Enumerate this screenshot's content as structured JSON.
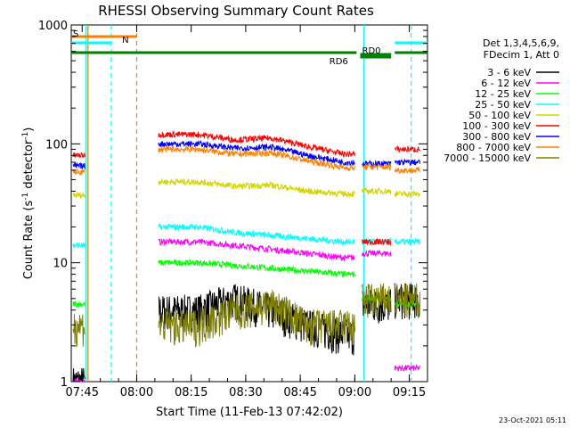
{
  "chart_data": {
    "type": "line",
    "title": "RHESSI Observing Summary Count Rates",
    "xlabel": "Start Time (11-Feb-13 07:42:02)",
    "ylabel_main": "Count Rate (s",
    "ylabel_sup1": "-1",
    "ylabel_mid": " detector",
    "ylabel_sup2": "-1",
    "ylabel_end": ")",
    "y_scale": "log",
    "ylim": [
      1,
      1000
    ],
    "xlim_minutes": [
      0,
      98
    ],
    "x_ticks": [
      {
        "t": 3,
        "label": "07:45"
      },
      {
        "t": 18,
        "label": "08:00"
      },
      {
        "t": 33,
        "label": "08:15"
      },
      {
        "t": 48,
        "label": "08:30"
      },
      {
        "t": 63,
        "label": "08:45"
      },
      {
        "t": 78,
        "label": "09:00"
      },
      {
        "t": 93,
        "label": "09:15"
      }
    ],
    "y_ticks": [
      {
        "v": 1,
        "label": "1"
      },
      {
        "v": 10,
        "label": "10"
      },
      {
        "v": 100,
        "label": "100"
      },
      {
        "v": 1000,
        "label": "1000"
      }
    ],
    "legend_header": [
      "Det 1,3,4,5,6,9,",
      "FDecim 1, Att 0"
    ],
    "series": [
      {
        "name": "3 - 6 keV",
        "color": "#000000",
        "before": 1.0,
        "seg": [
          [
            35,
            4
          ],
          [
            45,
            5
          ],
          [
            55,
            4
          ],
          [
            65,
            3
          ],
          [
            75,
            2.5
          ]
        ],
        "after": 4.5,
        "late": 5
      },
      {
        "name": "6 - 12 keV",
        "color": "#ff00ff",
        "before": 1.0,
        "seg": [
          [
            35,
            15
          ],
          [
            45,
            14
          ],
          [
            55,
            13
          ],
          [
            65,
            12
          ],
          [
            75,
            11
          ]
        ],
        "after": 12,
        "late": 1.3
      },
      {
        "name": "12 - 25 keV",
        "color": "#00ff00",
        "before": 4.5,
        "seg": [
          [
            35,
            10
          ],
          [
            45,
            9.5
          ],
          [
            55,
            9
          ],
          [
            65,
            8.5
          ],
          [
            75,
            8
          ]
        ],
        "after": 5,
        "late": 4.5
      },
      {
        "name": "25 - 50 keV",
        "color": "#00ffff",
        "before": 14,
        "seg": [
          [
            35,
            20
          ],
          [
            45,
            18
          ],
          [
            55,
            17
          ],
          [
            65,
            16
          ],
          [
            75,
            15
          ]
        ],
        "after": 15,
        "late": 15
      },
      {
        "name": "50 - 100 keV",
        "color": "#d4d400",
        "before": 37,
        "seg": [
          [
            35,
            48
          ],
          [
            45,
            44
          ],
          [
            55,
            45
          ],
          [
            65,
            40
          ],
          [
            75,
            38
          ]
        ],
        "after": 40,
        "late": 38
      },
      {
        "name": "100 - 300 keV",
        "color": "#ff0000",
        "before": 80,
        "seg": [
          [
            35,
            120
          ],
          [
            45,
            108
          ],
          [
            55,
            112
          ],
          [
            65,
            95
          ],
          [
            75,
            82
          ]
        ],
        "after": 15,
        "late": 90
      },
      {
        "name": "300 - 800 keV",
        "color": "#0000ff",
        "before": 65,
        "seg": [
          [
            35,
            100
          ],
          [
            45,
            92
          ],
          [
            55,
            94
          ],
          [
            65,
            80
          ],
          [
            75,
            70
          ]
        ],
        "after": 68,
        "late": 70
      },
      {
        "name": "800 - 7000 keV",
        "color": "#ff7f00",
        "before": 58,
        "seg": [
          [
            35,
            90
          ],
          [
            45,
            82
          ],
          [
            55,
            84
          ],
          [
            65,
            72
          ],
          [
            75,
            63
          ]
        ],
        "after": 64,
        "late": 60
      },
      {
        "name": "7000 - 15000 keV",
        "color": "#808000",
        "before": 3.0,
        "seg": [
          [
            35,
            3
          ],
          [
            45,
            4
          ],
          [
            55,
            4.5
          ],
          [
            65,
            3
          ],
          [
            75,
            3
          ]
        ],
        "after": 5,
        "late": 5
      }
    ],
    "flags": [
      {
        "label": "S",
        "color": "#ff7f00",
        "t0": 0,
        "t1": 18
      },
      {
        "label": "N",
        "color": "#00ffff",
        "t0": 0,
        "t1": 11
      },
      {
        "label": "RD6",
        "color": "#008000",
        "t0": 0,
        "t1": 98
      },
      {
        "label": "RD0",
        "color": "#00ffff",
        "t0": 81,
        "t1": 98
      }
    ],
    "timestamp": "23-Oct-2021 05:11"
  }
}
